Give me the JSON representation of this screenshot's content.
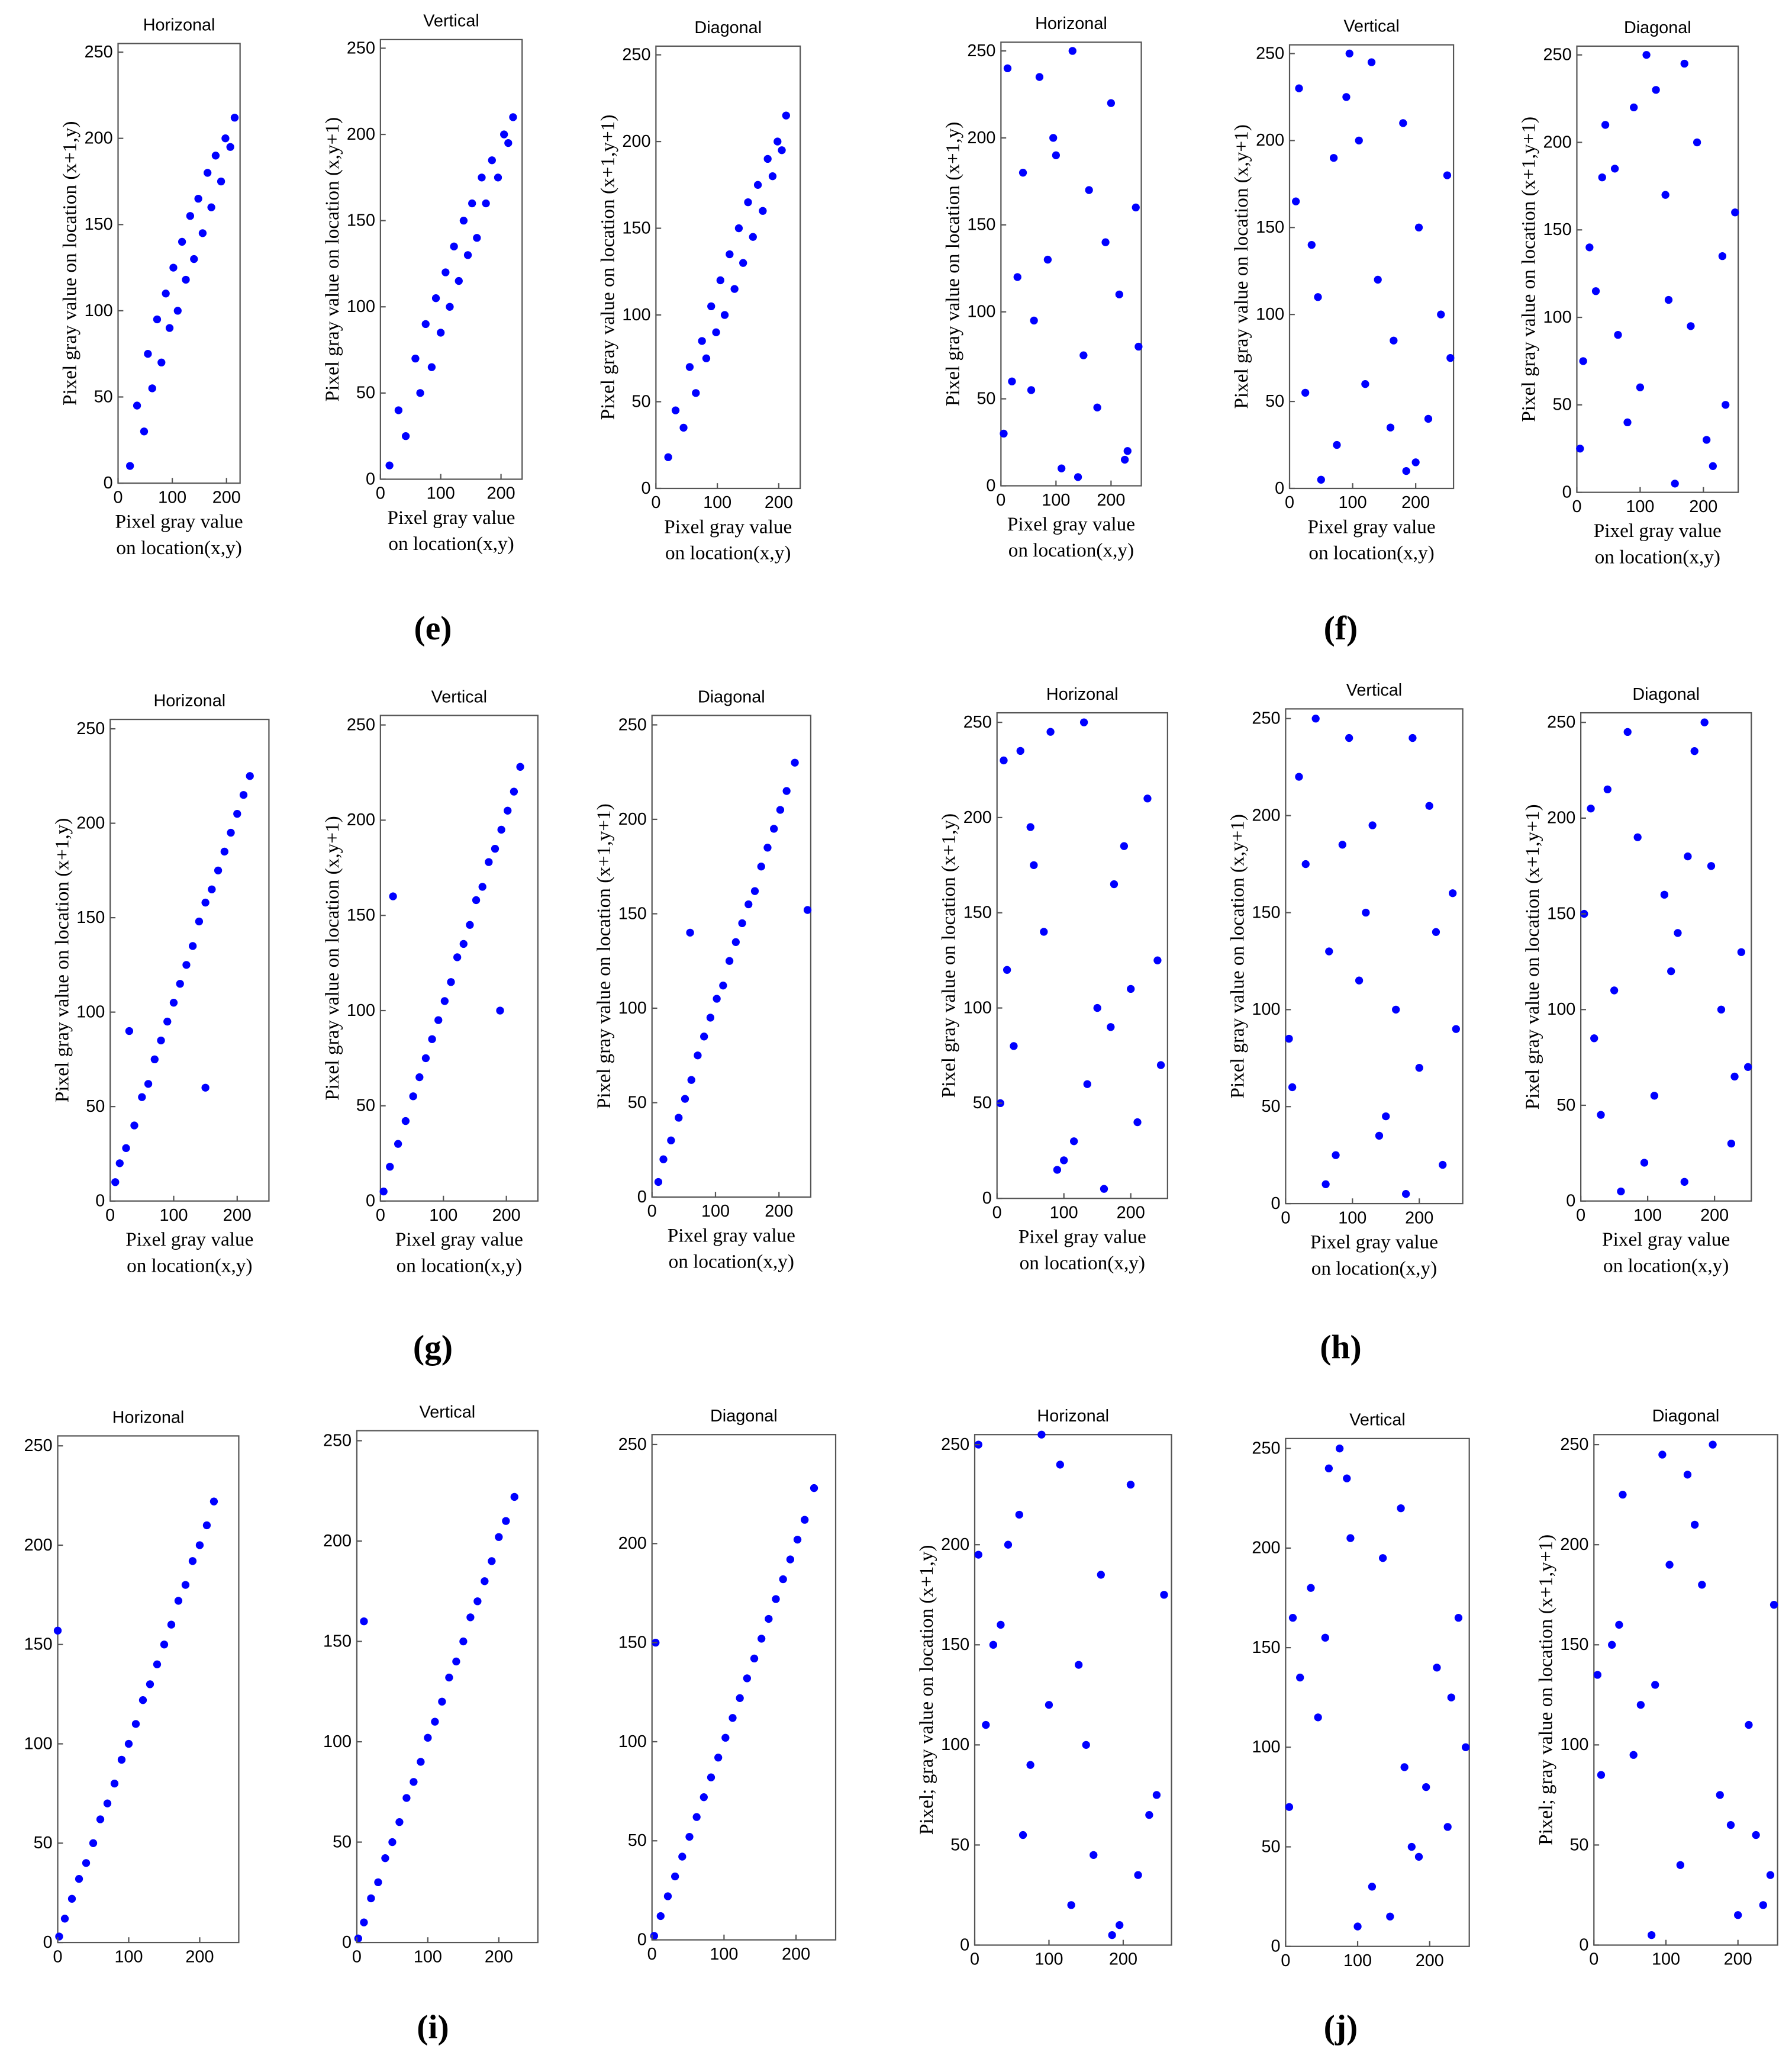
{
  "panels": [
    "(e)",
    "(f)",
    "(g)",
    "(h)",
    "(i)",
    "(j)"
  ],
  "chart_data": [
    {
      "type": "scatter",
      "title": "Horizonal",
      "ylabel": "Pixel gray value on location (x+1,y)",
      "xlabel": [
        "Pixel  gray  value",
        "on location(x,y)"
      ],
      "color": "#0000ff",
      "xlim": [
        0,
        225
      ],
      "ylim": [
        0,
        255
      ],
      "xticks": [
        0,
        100,
        200
      ],
      "yticks": [
        0,
        50,
        100,
        150,
        200,
        250
      ],
      "x": [
        22,
        35,
        48,
        55,
        63,
        72,
        80,
        88,
        95,
        102,
        110,
        118,
        125,
        133,
        140,
        148,
        156,
        165,
        172,
        180,
        190,
        198,
        207,
        215
      ],
      "values": [
        10,
        45,
        30,
        75,
        55,
        95,
        70,
        110,
        90,
        125,
        100,
        140,
        118,
        155,
        130,
        165,
        145,
        180,
        160,
        190,
        175,
        200,
        195,
        212
      ]
    },
    {
      "type": "scatter",
      "title": "Vertical",
      "ylabel": "Pixel gray value on location (x,y+1)",
      "xlabel": [
        "Pixel  gray  value",
        "on location(x,y)"
      ],
      "color": "#0000ff",
      "xlim": [
        0,
        235
      ],
      "ylim": [
        0,
        255
      ],
      "xticks": [
        0,
        100,
        200
      ],
      "yticks": [
        0,
        50,
        100,
        150,
        200,
        250
      ],
      "x": [
        15,
        30,
        42,
        58,
        66,
        75,
        85,
        92,
        100,
        108,
        115,
        122,
        130,
        138,
        145,
        152,
        160,
        168,
        175,
        185,
        195,
        205,
        212,
        220
      ],
      "values": [
        8,
        40,
        25,
        70,
        50,
        90,
        65,
        105,
        85,
        120,
        100,
        135,
        115,
        150,
        130,
        160,
        140,
        175,
        160,
        185,
        175,
        200,
        195,
        210
      ]
    },
    {
      "type": "scatter",
      "title": "Diagonal",
      "ylabel": "Pixel gray value on location (x+1,y+1)",
      "xlabel": [
        "Pixel  gray  value",
        "on location(x,y)"
      ],
      "color": "#0000ff",
      "xlim": [
        0,
        235
      ],
      "ylim": [
        0,
        255
      ],
      "xticks": [
        0,
        100,
        200
      ],
      "yticks": [
        0,
        50,
        100,
        150,
        200,
        250
      ],
      "x": [
        20,
        32,
        45,
        55,
        65,
        75,
        82,
        90,
        98,
        105,
        112,
        120,
        128,
        135,
        142,
        150,
        158,
        166,
        174,
        182,
        190,
        198,
        205,
        212
      ],
      "values": [
        18,
        45,
        35,
        70,
        55,
        85,
        75,
        105,
        90,
        120,
        100,
        135,
        115,
        150,
        130,
        165,
        145,
        175,
        160,
        190,
        180,
        200,
        195,
        215
      ]
    },
    {
      "type": "scatter",
      "title": "Horizonal",
      "ylabel": "Pixel gray value on location (x+1,y)",
      "xlabel": [
        "Pixel  gray  value",
        "on location(x,y)"
      ],
      "color": "#0000ff",
      "xlim": [
        0,
        255
      ],
      "ylim": [
        0,
        255
      ],
      "xticks": [
        0,
        100,
        200
      ],
      "yticks": [
        0,
        50,
        100,
        150,
        200,
        250
      ],
      "x": [
        12,
        230,
        85,
        150,
        40,
        200,
        110,
        60,
        245,
        175,
        20,
        130,
        95,
        215,
        5,
        160,
        70,
        190,
        140,
        30,
        250,
        100,
        55,
        225
      ],
      "values": [
        240,
        20,
        130,
        75,
        180,
        220,
        10,
        95,
        160,
        45,
        60,
        250,
        200,
        110,
        30,
        170,
        235,
        140,
        5,
        120,
        80,
        190,
        55,
        15
      ]
    },
    {
      "type": "scatter",
      "title": "Vertical",
      "ylabel": "Pixel gray value on location (x,y+1)",
      "xlabel": [
        "Pixel  gray  value",
        "on location(x,y)"
      ],
      "color": "#0000ff",
      "xlim": [
        0,
        260
      ],
      "ylim": [
        0,
        255
      ],
      "xticks": [
        0,
        100,
        200
      ],
      "yticks": [
        0,
        50,
        100,
        150,
        200,
        250
      ],
      "x": [
        200,
        15,
        120,
        70,
        240,
        95,
        160,
        35,
        180,
        255,
        50,
        140,
        10,
        220,
        90,
        165,
        250,
        25,
        130,
        75,
        205,
        110,
        45,
        185
      ],
      "values": [
        15,
        230,
        60,
        190,
        100,
        250,
        35,
        140,
        210,
        75,
        5,
        120,
        165,
        40,
        225,
        85,
        180,
        55,
        245,
        25,
        150,
        200,
        110,
        10
      ]
    },
    {
      "type": "scatter",
      "title": "Diagonal",
      "ylabel": "Pixel gray value on location (x+1,y+1)",
      "xlabel": [
        "Pixel  gray  value",
        "on location(x,y)"
      ],
      "color": "#0000ff",
      "xlim": [
        0,
        255
      ],
      "ylim": [
        0,
        255
      ],
      "xticks": [
        0,
        100,
        200
      ],
      "yticks": [
        0,
        50,
        100,
        150,
        200,
        250
      ],
      "x": [
        100,
        45,
        230,
        5,
        170,
        65,
        140,
        215,
        30,
        190,
        80,
        250,
        125,
        10,
        155,
        60,
        235,
        110,
        20,
        180,
        90,
        205,
        40,
        145
      ],
      "values": [
        60,
        210,
        135,
        25,
        245,
        90,
        170,
        15,
        115,
        200,
        40,
        160,
        230,
        75,
        5,
        185,
        50,
        250,
        140,
        95,
        220,
        30,
        180,
        110
      ]
    },
    {
      "type": "scatter",
      "title": "Horizonal",
      "ylabel": "Pixel gray value on location (x+1,y)",
      "xlabel": [
        "Pixel  gray  value",
        "on location(x,y)"
      ],
      "color": "#0000ff",
      "xlim": [
        0,
        250
      ],
      "ylim": [
        0,
        255
      ],
      "xticks": [
        0,
        100,
        200
      ],
      "yticks": [
        0,
        50,
        100,
        150,
        200,
        250
      ],
      "x": [
        8,
        15,
        25,
        38,
        50,
        60,
        70,
        80,
        90,
        100,
        110,
        120,
        130,
        140,
        150,
        160,
        170,
        180,
        190,
        200,
        210,
        220,
        30,
        150
      ],
      "values": [
        10,
        20,
        28,
        40,
        55,
        62,
        75,
        85,
        95,
        105,
        115,
        125,
        135,
        148,
        158,
        165,
        175,
        185,
        195,
        205,
        215,
        225,
        90,
        60
      ]
    },
    {
      "type": "scatter",
      "title": "Vertical",
      "ylabel": "Pixel gray value on location (x,y+1)",
      "xlabel": [
        "Pixel  gray  value",
        "on location(x,y)"
      ],
      "color": "#0000ff",
      "xlim": [
        0,
        250
      ],
      "ylim": [
        0,
        255
      ],
      "xticks": [
        0,
        100,
        200
      ],
      "yticks": [
        0,
        50,
        100,
        150,
        200,
        250
      ],
      "x": [
        5,
        15,
        28,
        40,
        52,
        62,
        72,
        82,
        92,
        102,
        112,
        122,
        132,
        142,
        152,
        162,
        172,
        182,
        192,
        202,
        212,
        222,
        20,
        190
      ],
      "values": [
        5,
        18,
        30,
        42,
        55,
        65,
        75,
        85,
        95,
        105,
        115,
        128,
        135,
        145,
        158,
        165,
        178,
        185,
        195,
        205,
        215,
        228,
        160,
        100
      ]
    },
    {
      "type": "scatter",
      "title": "Diagonal",
      "ylabel": "Pixel gray value on location (x+1,y+1)",
      "xlabel": [
        "Pixel  gray  value",
        "on location(x,y)"
      ],
      "color": "#0000ff",
      "xlim": [
        0,
        250
      ],
      "ylim": [
        0,
        255
      ],
      "xticks": [
        0,
        100,
        200
      ],
      "yticks": [
        0,
        50,
        100,
        150,
        200,
        250
      ],
      "x": [
        10,
        18,
        30,
        42,
        52,
        62,
        72,
        82,
        92,
        102,
        112,
        122,
        132,
        142,
        152,
        162,
        172,
        182,
        192,
        202,
        212,
        225,
        60,
        245
      ],
      "values": [
        8,
        20,
        30,
        42,
        52,
        62,
        75,
        85,
        95,
        105,
        112,
        125,
        135,
        145,
        155,
        162,
        175,
        185,
        195,
        205,
        215,
        230,
        140,
        152
      ]
    },
    {
      "type": "scatter",
      "title": "Horizonal",
      "ylabel": "Pixel gray value on location (x+1,y)",
      "xlabel": [
        "Pixel  gray  value",
        "on location(x,y)"
      ],
      "color": "#0000ff",
      "xlim": [
        0,
        255
      ],
      "ylim": [
        0,
        255
      ],
      "xticks": [
        0,
        100,
        200
      ],
      "yticks": [
        0,
        50,
        100,
        150,
        200,
        250
      ],
      "x": [
        50,
        210,
        15,
        130,
        245,
        90,
        175,
        35,
        150,
        5,
        225,
        70,
        115,
        190,
        25,
        160,
        240,
        80,
        135,
        55,
        200,
        100,
        10,
        170
      ],
      "values": [
        195,
        40,
        120,
        250,
        70,
        15,
        165,
        235,
        100,
        50,
        210,
        140,
        30,
        185,
        80,
        5,
        125,
        245,
        60,
        175,
        110,
        20,
        230,
        90
      ]
    },
    {
      "type": "scatter",
      "title": "Vertical",
      "ylabel": "Pixel gray value on location (x,y+1)",
      "xlabel": [
        "Pixel  gray  value",
        "on location(x,y)"
      ],
      "color": "#0000ff",
      "xlim": [
        0,
        265
      ],
      "ylim": [
        0,
        255
      ],
      "xticks": [
        0,
        100,
        200
      ],
      "yticks": [
        0,
        50,
        100,
        150,
        200,
        250
      ],
      "x": [
        180,
        30,
        95,
        255,
        65,
        140,
        215,
        10,
        120,
        235,
        45,
        165,
        85,
        200,
        20,
        150,
        250,
        60,
        110,
        190,
        5,
        130,
        225,
        75
      ],
      "values": [
        5,
        175,
        240,
        90,
        130,
        35,
        205,
        60,
        150,
        20,
        250,
        100,
        185,
        70,
        220,
        45,
        160,
        10,
        115,
        240,
        85,
        195,
        140,
        25
      ]
    },
    {
      "type": "scatter",
      "title": "Diagonal",
      "ylabel": "Pixel gray value on location (x+1,y+1)",
      "xlabel": [
        "Pixel  gray  value",
        "on location(x,y)"
      ],
      "color": "#0000ff",
      "xlim": [
        0,
        255
      ],
      "ylim": [
        0,
        255
      ],
      "xticks": [
        0,
        100,
        200
      ],
      "yticks": [
        0,
        50,
        100,
        150,
        200,
        250
      ],
      "x": [
        240,
        70,
        155,
        20,
        195,
        110,
        40,
        225,
        135,
        85,
        250,
        5,
        170,
        60,
        210,
        125,
        30,
        185,
        95,
        145,
        15,
        230,
        50,
        160
      ],
      "values": [
        130,
        245,
        10,
        85,
        175,
        55,
        215,
        30,
        120,
        190,
        70,
        150,
        235,
        5,
        100,
        160,
        45,
        250,
        20,
        140,
        205,
        65,
        110,
        180
      ]
    },
    {
      "type": "scatter",
      "title": "Horizonal",
      "color": "#0000ff",
      "xlim": [
        0,
        255
      ],
      "ylim": [
        0,
        255
      ],
      "xticks": [
        0,
        100,
        200
      ],
      "yticks": [
        0,
        50,
        100,
        150,
        200,
        250
      ],
      "x": [
        2,
        10,
        20,
        30,
        40,
        50,
        60,
        70,
        80,
        90,
        100,
        110,
        120,
        130,
        140,
        150,
        160,
        170,
        180,
        190,
        200,
        210,
        220,
        0
      ],
      "values": [
        3,
        12,
        22,
        32,
        40,
        50,
        62,
        70,
        80,
        92,
        100,
        110,
        122,
        130,
        140,
        150,
        160,
        172,
        180,
        192,
        200,
        210,
        222,
        157
      ]
    },
    {
      "type": "scatter",
      "title": "Vertical",
      "color": "#0000ff",
      "xlim": [
        0,
        255
      ],
      "ylim": [
        0,
        255
      ],
      "xticks": [
        0,
        100,
        200
      ],
      "yticks": [
        0,
        50,
        100,
        150,
        200,
        250
      ],
      "x": [
        2,
        10,
        20,
        30,
        40,
        50,
        60,
        70,
        80,
        90,
        100,
        110,
        120,
        130,
        140,
        150,
        160,
        170,
        180,
        190,
        200,
        210,
        222,
        10
      ],
      "values": [
        2,
        10,
        22,
        30,
        42,
        50,
        60,
        72,
        80,
        90,
        102,
        110,
        120,
        132,
        140,
        150,
        162,
        170,
        180,
        190,
        202,
        210,
        222,
        160
      ]
    },
    {
      "type": "scatter",
      "title": "Diagonal",
      "color": "#0000ff",
      "xlim": [
        0,
        255
      ],
      "ylim": [
        0,
        255
      ],
      "xticks": [
        0,
        100,
        200
      ],
      "yticks": [
        0,
        50,
        100,
        150,
        200,
        250
      ],
      "x": [
        3,
        12,
        22,
        32,
        42,
        52,
        62,
        72,
        82,
        92,
        102,
        112,
        122,
        132,
        142,
        152,
        162,
        172,
        182,
        192,
        202,
        212,
        225,
        5
      ],
      "values": [
        2,
        12,
        22,
        32,
        42,
        52,
        62,
        72,
        82,
        92,
        102,
        112,
        122,
        132,
        142,
        152,
        162,
        172,
        182,
        192,
        202,
        212,
        228,
        150
      ]
    },
    {
      "type": "scatter",
      "title": "Horizonal",
      "ylabel": "Pixel; gray value on location (x+1,y)",
      "color": "#0000ff",
      "xlim": [
        0,
        265
      ],
      "ylim": [
        0,
        255
      ],
      "xticks": [
        0,
        100,
        200
      ],
      "yticks": [
        0,
        50,
        100,
        150,
        200,
        250
      ],
      "x": [
        130,
        25,
        210,
        75,
        255,
        160,
        5,
        100,
        185,
        45,
        235,
        140,
        60,
        220,
        15,
        170,
        90,
        245,
        35,
        195,
        115,
        65,
        150,
        5
      ],
      "values": [
        20,
        150,
        230,
        90,
        175,
        45,
        250,
        120,
        5,
        200,
        65,
        140,
        215,
        35,
        110,
        185,
        255,
        75,
        160,
        10,
        240,
        55,
        100,
        195
      ]
    },
    {
      "type": "scatter",
      "title": "Vertical",
      "color": "#0000ff",
      "xlim": [
        0,
        255
      ],
      "ylim": [
        0,
        255
      ],
      "xticks": [
        0,
        100,
        200
      ],
      "yticks": [
        0,
        50,
        100,
        150,
        200,
        250
      ],
      "x": [
        60,
        195,
        10,
        145,
        230,
        90,
        175,
        35,
        250,
        120,
        75,
        210,
        5,
        160,
        100,
        240,
        45,
        185,
        135,
        20,
        225,
        85,
        165,
        55
      ],
      "values": [
        240,
        80,
        165,
        15,
        125,
        205,
        50,
        180,
        100,
        30,
        250,
        140,
        70,
        220,
        10,
        165,
        115,
        45,
        195,
        135,
        60,
        235,
        90,
        155
      ]
    },
    {
      "type": "scatter",
      "title": "Diagonal",
      "ylabel": "Pixel; gray value on location (x+1,y+1)",
      "color": "#0000ff",
      "xlim": [
        0,
        255
      ],
      "ylim": [
        0,
        255
      ],
      "xticks": [
        0,
        100,
        200
      ],
      "yticks": [
        0,
        50,
        100,
        150,
        200,
        250
      ],
      "x": [
        215,
        40,
        120,
        250,
        80,
        165,
        5,
        190,
        105,
        55,
        235,
        140,
        25,
        175,
        95,
        245,
        65,
        150,
        10,
        200,
        130,
        35,
        225,
        85
      ],
      "values": [
        110,
        225,
        40,
        170,
        5,
        250,
        135,
        60,
        190,
        95,
        20,
        210,
        150,
        75,
        245,
        35,
        120,
        180,
        85,
        15,
        235,
        160,
        55,
        130
      ]
    }
  ]
}
